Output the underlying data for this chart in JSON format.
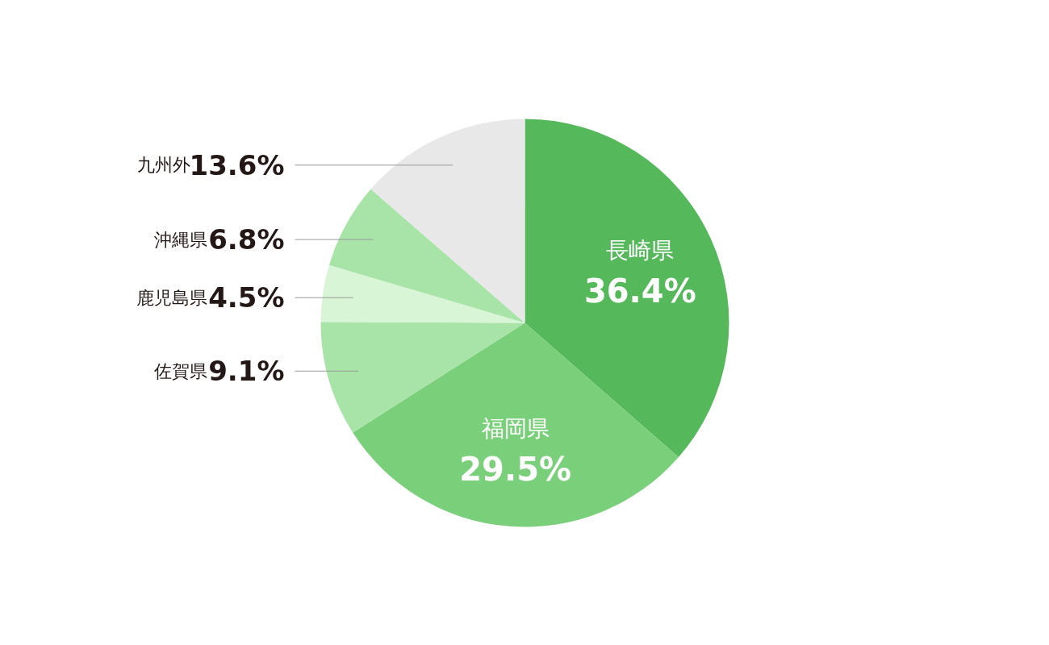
{
  "chart_data": {
    "type": "pie",
    "categories": [
      "長崎県",
      "福岡県",
      "佐賀県",
      "鹿児島県",
      "沖縄県",
      "九州外"
    ],
    "values": [
      36.4,
      29.5,
      9.1,
      4.5,
      6.8,
      13.6
    ],
    "colors": [
      "#55b85a",
      "#7acf7a",
      "#a8e4a8",
      "#d8f5d6",
      "#a8e4a8",
      "#e8e8e8"
    ],
    "value_labels": [
      "36.4%",
      "29.5%",
      "9.1%",
      "4.5%",
      "6.8%",
      "13.6%"
    ]
  }
}
